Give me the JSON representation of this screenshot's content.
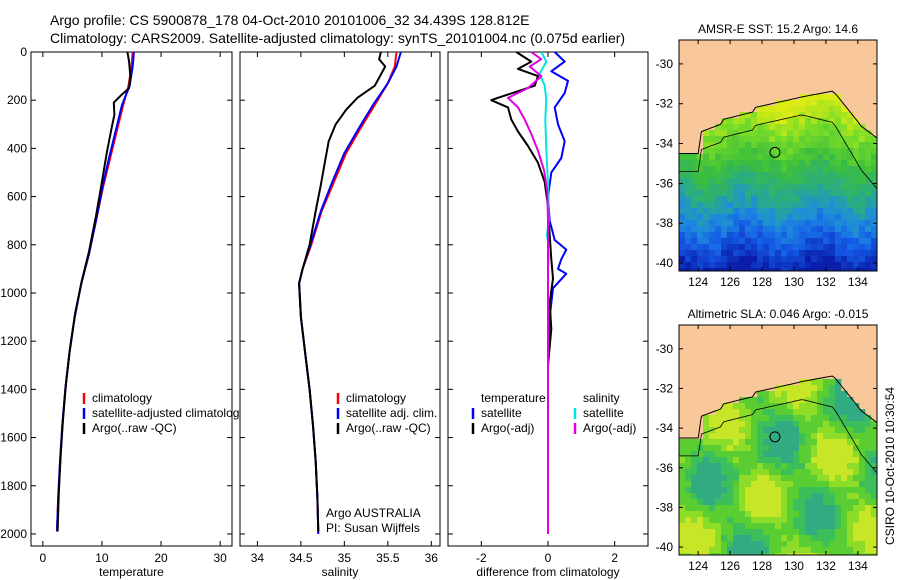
{
  "header": {
    "line1": "Argo profile: CS 5900878_178 04-Oct-2010 20101006_32 34.439S 128.812E",
    "line2": "Climatology: CARS2009. Satellite-adjusted climatology: synTS_20101004.nc (0.075d earlier)"
  },
  "side_label": "CSIRO 10-Oct-2010 10:30:54",
  "colors": {
    "climatology": "#ff0000",
    "satellite": "#0000ff",
    "argo": "#000000",
    "sal_satellite": "#00e5e5",
    "sal_argo": "#e000e0",
    "land": "#f8c89a"
  },
  "chart_data": [
    {
      "type": "line",
      "panel": "temperature",
      "xlabel": "temperature",
      "xlim": [
        -2,
        32
      ],
      "ylim": [
        2050,
        0
      ],
      "xticks": [
        0,
        10,
        20,
        30
      ],
      "yticks": [
        0,
        200,
        400,
        600,
        800,
        1000,
        1200,
        1400,
        1600,
        1800,
        2000
      ],
      "legend": [
        "climatology",
        "satellite-adjusted climatology",
        "Argo(..raw -QC)"
      ],
      "series": [
        {
          "name": "climatology",
          "color": "#ff0000",
          "points": [
            [
              15.2,
              0
            ],
            [
              15.0,
              60
            ],
            [
              14.5,
              140
            ],
            [
              13.6,
              220
            ],
            [
              12.6,
              320
            ],
            [
              11.4,
              440
            ],
            [
              10.2,
              560
            ],
            [
              9.0,
              700
            ],
            [
              7.8,
              840
            ],
            [
              6.5,
              960
            ],
            [
              5.4,
              1100
            ],
            [
              4.5,
              1250
            ],
            [
              3.8,
              1400
            ],
            [
              3.3,
              1550
            ],
            [
              2.9,
              1700
            ],
            [
              2.6,
              1850
            ],
            [
              2.4,
              1980
            ]
          ]
        },
        {
          "name": "satellite-adjusted climatology",
          "color": "#0000ff",
          "points": [
            [
              15.4,
              0
            ],
            [
              15.2,
              60
            ],
            [
              14.7,
              140
            ],
            [
              13.4,
              220
            ],
            [
              12.4,
              320
            ],
            [
              11.2,
              440
            ],
            [
              10.1,
              560
            ],
            [
              9.0,
              700
            ],
            [
              7.8,
              840
            ],
            [
              6.5,
              960
            ],
            [
              5.4,
              1100
            ],
            [
              4.5,
              1250
            ],
            [
              3.8,
              1400
            ],
            [
              3.3,
              1550
            ],
            [
              2.9,
              1700
            ],
            [
              2.6,
              1850
            ],
            [
              2.4,
              1990
            ]
          ]
        },
        {
          "name": "Argo(..raw -QC)",
          "color": "#000000",
          "points": [
            [
              14.3,
              0
            ],
            [
              14.6,
              40
            ],
            [
              14.8,
              100
            ],
            [
              14.6,
              150
            ],
            [
              13.2,
              180
            ],
            [
              12.0,
              210
            ],
            [
              12.1,
              260
            ],
            [
              11.6,
              320
            ],
            [
              10.8,
              420
            ],
            [
              10.0,
              540
            ],
            [
              9.0,
              680
            ],
            [
              7.8,
              830
            ],
            [
              6.6,
              950
            ],
            [
              5.5,
              1080
            ],
            [
              4.6,
              1230
            ],
            [
              3.9,
              1380
            ],
            [
              3.4,
              1530
            ],
            [
              3.0,
              1680
            ],
            [
              2.7,
              1830
            ],
            [
              2.5,
              1990
            ]
          ]
        }
      ]
    },
    {
      "type": "line",
      "panel": "salinity",
      "xlabel": "salinity",
      "xlim": [
        33.8,
        36.1
      ],
      "ylim": [
        2050,
        0
      ],
      "xticks": [
        34,
        34.5,
        35,
        35.5,
        36
      ],
      "legend": [
        "climatology",
        "satellite adj. clim.",
        "Argo(..raw -QC)"
      ],
      "annotation": [
        "Argo AUSTRALIA",
        "PI: Susan Wijffels"
      ],
      "series": [
        {
          "name": "climatology",
          "color": "#ff0000",
          "points": [
            [
              35.6,
              0
            ],
            [
              35.58,
              60
            ],
            [
              35.5,
              130
            ],
            [
              35.35,
              220
            ],
            [
              35.18,
              320
            ],
            [
              35.02,
              420
            ],
            [
              34.88,
              540
            ],
            [
              34.74,
              660
            ],
            [
              34.62,
              800
            ],
            [
              34.52,
              900
            ],
            [
              34.48,
              960
            ],
            [
              34.5,
              1100
            ],
            [
              34.55,
              1250
            ],
            [
              34.6,
              1400
            ],
            [
              34.64,
              1550
            ],
            [
              34.67,
              1700
            ],
            [
              34.69,
              1850
            ],
            [
              34.7,
              1990
            ]
          ]
        },
        {
          "name": "satellite adj. clim.",
          "color": "#0000ff",
          "points": [
            [
              35.65,
              0
            ],
            [
              35.6,
              60
            ],
            [
              35.5,
              130
            ],
            [
              35.33,
              220
            ],
            [
              35.16,
              320
            ],
            [
              35.0,
              420
            ],
            [
              34.86,
              540
            ],
            [
              34.73,
              660
            ],
            [
              34.61,
              800
            ],
            [
              34.52,
              900
            ],
            [
              34.48,
              960
            ],
            [
              34.5,
              1100
            ],
            [
              34.55,
              1250
            ],
            [
              34.6,
              1400
            ],
            [
              34.64,
              1550
            ],
            [
              34.67,
              1700
            ],
            [
              34.69,
              1850
            ],
            [
              34.7,
              2000
            ]
          ]
        },
        {
          "name": "Argo(..raw -QC)",
          "color": "#000000",
          "points": [
            [
              35.42,
              0
            ],
            [
              35.4,
              30
            ],
            [
              35.47,
              60
            ],
            [
              35.41,
              100
            ],
            [
              35.35,
              140
            ],
            [
              35.15,
              190
            ],
            [
              35.02,
              240
            ],
            [
              34.9,
              300
            ],
            [
              34.82,
              370
            ],
            [
              34.78,
              450
            ],
            [
              34.73,
              550
            ],
            [
              34.67,
              660
            ],
            [
              34.6,
              800
            ],
            [
              34.52,
              900
            ],
            [
              34.48,
              960
            ],
            [
              34.5,
              1100
            ],
            [
              34.55,
              1250
            ],
            [
              34.6,
              1400
            ],
            [
              34.64,
              1550
            ],
            [
              34.67,
              1700
            ],
            [
              34.69,
              1850
            ],
            [
              34.7,
              1990
            ]
          ]
        }
      ]
    },
    {
      "type": "line",
      "panel": "difference",
      "xlabel": "difference from climatology",
      "xlim": [
        -3,
        3
      ],
      "ylim": [
        2050,
        0
      ],
      "xticks": [
        -2,
        0,
        2
      ],
      "legend_groups": [
        {
          "title": "temperature",
          "entries": [
            "satellite",
            "Argo(-adj)"
          ]
        },
        {
          "title": "salinity",
          "entries": [
            "satellite",
            "Argo(-adj)"
          ]
        }
      ],
      "series": [
        {
          "name": "temperature satellite",
          "color": "#0000ff",
          "points": [
            [
              0.2,
              0
            ],
            [
              0.5,
              40
            ],
            [
              0.1,
              80
            ],
            [
              0.6,
              120
            ],
            [
              0.5,
              170
            ],
            [
              0.2,
              230
            ],
            [
              0.3,
              300
            ],
            [
              0.5,
              370
            ],
            [
              0.4,
              440
            ],
            [
              0.1,
              500
            ],
            [
              0.0,
              600
            ],
            [
              0.05,
              700
            ],
            [
              0.2,
              780
            ],
            [
              0.55,
              820
            ],
            [
              0.4,
              860
            ],
            [
              0.3,
              900
            ],
            [
              0.55,
              920
            ],
            [
              0.15,
              980
            ],
            [
              0.05,
              1100
            ],
            [
              0.0,
              1300
            ],
            [
              0.0,
              1600
            ],
            [
              0.0,
              2000
            ]
          ]
        },
        {
          "name": "temperature Argo(-adj)",
          "color": "#000000",
          "points": [
            [
              -0.95,
              0
            ],
            [
              -0.5,
              40
            ],
            [
              -0.9,
              70
            ],
            [
              -0.3,
              100
            ],
            [
              -0.4,
              140
            ],
            [
              -1.5,
              190
            ],
            [
              -1.7,
              200
            ],
            [
              -1.2,
              230
            ],
            [
              -1.1,
              280
            ],
            [
              -0.9,
              330
            ],
            [
              -0.6,
              390
            ],
            [
              -0.3,
              460
            ],
            [
              -0.1,
              540
            ],
            [
              0.0,
              640
            ],
            [
              0.05,
              760
            ],
            [
              0.1,
              860
            ],
            [
              0.15,
              940
            ],
            [
              0.05,
              1040
            ],
            [
              0.1,
              1150
            ],
            [
              0.0,
              1300
            ],
            [
              0.0,
              1600
            ],
            [
              0.0,
              2000
            ]
          ]
        },
        {
          "name": "salinity satellite",
          "color": "#00e5e5",
          "points": [
            [
              -0.2,
              0
            ],
            [
              -0.05,
              40
            ],
            [
              -0.25,
              90
            ],
            [
              -0.1,
              140
            ],
            [
              -0.05,
              200
            ],
            [
              -0.08,
              280
            ],
            [
              -0.05,
              400
            ],
            [
              0.0,
              550
            ],
            [
              0.02,
              700
            ],
            [
              -0.03,
              760
            ],
            [
              0.03,
              820
            ],
            [
              0.0,
              900
            ],
            [
              0.0,
              1100
            ],
            [
              0.0,
              1400
            ],
            [
              0.0,
              1700
            ],
            [
              0.0,
              2000
            ]
          ]
        },
        {
          "name": "salinity Argo(-adj)",
          "color": "#e000e0",
          "points": [
            [
              -0.5,
              0
            ],
            [
              -0.2,
              30
            ],
            [
              -0.55,
              60
            ],
            [
              -0.2,
              100
            ],
            [
              -0.6,
              150
            ],
            [
              -1.2,
              190
            ],
            [
              -0.9,
              230
            ],
            [
              -0.7,
              280
            ],
            [
              -0.5,
              340
            ],
            [
              -0.3,
              410
            ],
            [
              -0.12,
              490
            ],
            [
              -0.02,
              580
            ],
            [
              0.0,
              700
            ],
            [
              0.0,
              900
            ],
            [
              0.0,
              1200
            ],
            [
              0.0,
              1600
            ],
            [
              0.0,
              2000
            ]
          ]
        }
      ]
    },
    {
      "type": "heatmap",
      "panel": "sst_map",
      "title": "AMSR-E SST: 15.2 Argo: 14.6",
      "xlim": [
        122.8,
        135.2
      ],
      "ylim": [
        -40.4,
        -28.8
      ],
      "xticks": [
        124,
        126,
        128,
        130,
        132,
        134
      ],
      "yticks": [
        -30,
        -32,
        -34,
        -36,
        -38,
        -40
      ],
      "marker": [
        128.81,
        -34.44
      ]
    },
    {
      "type": "heatmap",
      "panel": "sla_map",
      "title": "Altimetric SLA: 0.046 Argo: -0.015",
      "xlim": [
        122.8,
        135.2
      ],
      "ylim": [
        -40.4,
        -28.8
      ],
      "xticks": [
        124,
        126,
        128,
        130,
        132,
        134
      ],
      "yticks": [
        -30,
        -32,
        -34,
        -36,
        -38,
        -40
      ],
      "marker": [
        128.81,
        -34.44
      ]
    }
  ]
}
